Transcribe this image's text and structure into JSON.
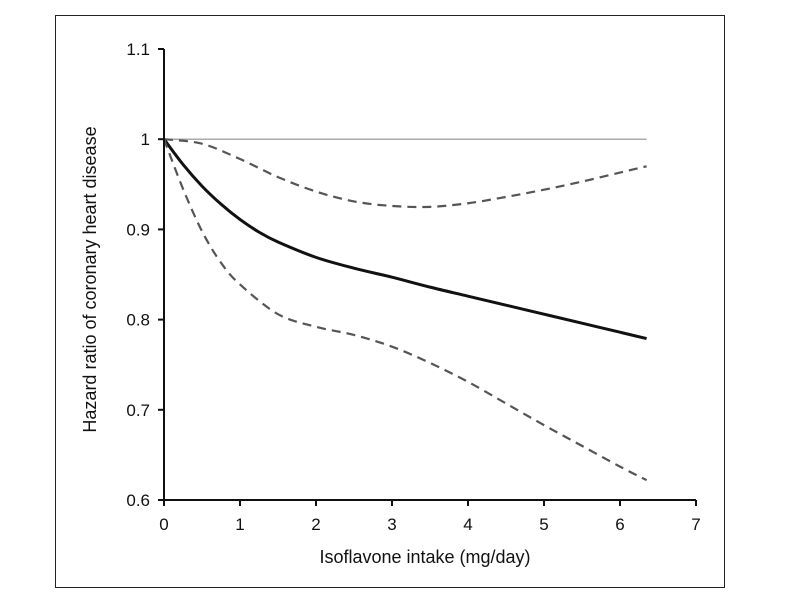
{
  "chart_data": {
    "type": "line",
    "title": "",
    "xlabel": "Isoflavone intake (mg/day)",
    "ylabel": "Hazard ratio of coronary heart disease",
    "xlim": [
      0,
      7
    ],
    "ylim": [
      0.6,
      1.1
    ],
    "x_ticks": [
      "0",
      "1",
      "2",
      "3",
      "4",
      "5",
      "6",
      "7"
    ],
    "y_ticks": [
      "0.6",
      "0.7",
      "0.8",
      "0.9",
      "1",
      "1.1"
    ],
    "grid": false,
    "legend": "none",
    "reference_line": {
      "y": 1,
      "color": "#aaaaaa"
    },
    "series": [
      {
        "style": "solid",
        "color": "#111111",
        "x": [
          0,
          0.25,
          0.5,
          0.75,
          1,
          1.25,
          1.5,
          2,
          2.5,
          3,
          3.5,
          4,
          4.5,
          5,
          5.5,
          6,
          6.35
        ],
        "y": [
          1.0,
          0.972,
          0.948,
          0.928,
          0.911,
          0.897,
          0.886,
          0.869,
          0.857,
          0.847,
          0.836,
          0.826,
          0.816,
          0.806,
          0.796,
          0.786,
          0.779
        ]
      },
      {
        "style": "dashed",
        "color": "#555555",
        "x": [
          0,
          0.5,
          1,
          1.5,
          2,
          2.5,
          3,
          3.5,
          4,
          4.5,
          5,
          5.5,
          6,
          6.35
        ],
        "y": [
          1.0,
          0.995,
          0.978,
          0.958,
          0.942,
          0.931,
          0.926,
          0.925,
          0.929,
          0.936,
          0.944,
          0.953,
          0.963,
          0.97
        ]
      },
      {
        "style": "dashed",
        "color": "#555555",
        "x": [
          0,
          0.25,
          0.5,
          0.75,
          1,
          1.5,
          2,
          2.5,
          3,
          3.5,
          4,
          4.5,
          5,
          5.5,
          6,
          6.35
        ],
        "y": [
          1.0,
          0.945,
          0.898,
          0.863,
          0.839,
          0.806,
          0.792,
          0.783,
          0.77,
          0.752,
          0.731,
          0.707,
          0.683,
          0.66,
          0.637,
          0.622
        ]
      }
    ]
  }
}
